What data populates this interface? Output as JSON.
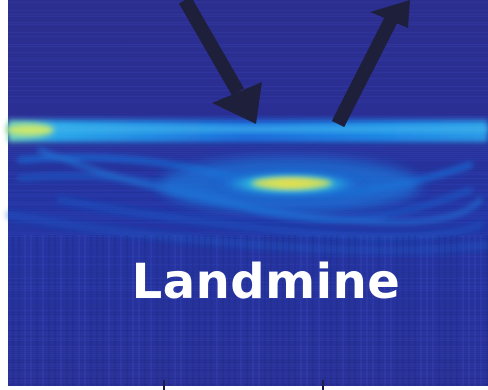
{
  "image": {
    "label": "Landmine",
    "colormap": [
      "#2a2f8e",
      "#1c5fd0",
      "#1aa6e8",
      "#5fd6c4",
      "#e8e04a"
    ],
    "arrow_color": "#1e1f3a",
    "background_color": "#2e3192"
  }
}
